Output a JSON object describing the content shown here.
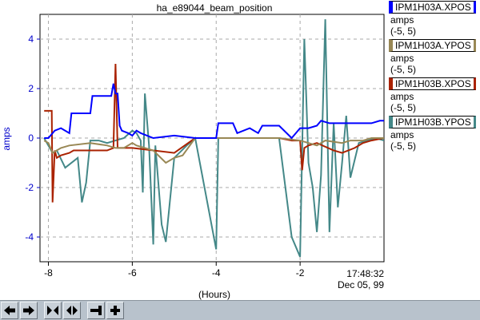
{
  "chart_data": {
    "type": "line",
    "title": "ha_e89044_beam_position",
    "ylabel": "amps",
    "xlabel": "(Hours)",
    "time_label": "17:48:32",
    "date_label": "Dec 05, 99",
    "xlim": [
      -8.2,
      0
    ],
    "ylim": [
      -5,
      5
    ],
    "xticks": [
      -8,
      -6,
      -4,
      -2
    ],
    "yticks": [
      -4,
      -2,
      0,
      2,
      4
    ],
    "grid": true,
    "legend_position": "right",
    "series": [
      {
        "name": "IPM1H03A.XPOS",
        "color": "#0000ff",
        "units": "amps",
        "range": "(-5, 5)",
        "x": [
          -8.1,
          -8.0,
          -7.85,
          -7.7,
          -7.5,
          -7.45,
          -7.2,
          -7.0,
          -6.95,
          -6.7,
          -6.6,
          -6.5,
          -6.45,
          -6.4,
          -6.35,
          -6.3,
          -6.25,
          -6.1,
          -6.0,
          -5.9,
          -5.8,
          -5.5,
          -5.0,
          -4.5,
          -4.0,
          -3.95,
          -3.9,
          -3.6,
          -3.5,
          -3.2,
          -3.0,
          -2.9,
          -2.5,
          -2.2,
          -2.0,
          -1.8,
          -1.6,
          -1.5,
          -1.3,
          -1.0,
          -0.8,
          -0.5,
          -0.3,
          -0.1,
          0.0
        ],
        "y": [
          0.0,
          0.0,
          0.3,
          0.4,
          0.2,
          1.0,
          1.0,
          1.0,
          1.7,
          1.7,
          1.7,
          1.7,
          2.2,
          1.8,
          1.8,
          0.5,
          0.3,
          0.2,
          0.1,
          0.3,
          0.2,
          0.0,
          0.1,
          0.0,
          0.0,
          0.6,
          0.6,
          0.6,
          0.2,
          0.4,
          0.2,
          0.5,
          0.5,
          0.0,
          0.4,
          0.4,
          0.5,
          0.7,
          0.6,
          0.6,
          0.6,
          0.6,
          0.6,
          0.7,
          0.7
        ]
      },
      {
        "name": "IPM1H03A.YPOS",
        "color": "#998855",
        "units": "amps",
        "range": "(-5, 5)",
        "x": [
          -8.1,
          -8.0,
          -7.9,
          -7.7,
          -7.5,
          -7.0,
          -6.6,
          -6.4,
          -6.2,
          -6.0,
          -5.9,
          -5.5,
          -5.2,
          -5.0,
          -4.8,
          -4.5,
          -4.0,
          -3.5,
          -3.0,
          -2.5,
          -2.0,
          -1.8,
          -1.6,
          -1.4,
          -1.0,
          -0.8,
          -0.5,
          -0.3,
          0.0
        ],
        "y": [
          -0.1,
          -0.2,
          -0.6,
          -0.4,
          -0.3,
          -0.2,
          -0.3,
          -0.4,
          -0.4,
          -0.2,
          -0.3,
          -0.5,
          -1.0,
          -0.8,
          -0.7,
          0.0,
          0.0,
          0.0,
          0.0,
          0.0,
          -0.1,
          -0.2,
          -0.3,
          -0.1,
          -0.2,
          -0.1,
          -0.1,
          0.0,
          0.0
        ]
      },
      {
        "name": "IPM1H03B.XPOS",
        "color": "#aa2200",
        "units": "amps",
        "range": "(-5, 5)",
        "x": [
          -8.1,
          -8.0,
          -7.92,
          -7.9,
          -7.85,
          -7.8,
          -7.7,
          -7.5,
          -7.4,
          -7.2,
          -7.0,
          -6.8,
          -6.6,
          -6.45,
          -6.4,
          -6.35,
          -6.3,
          -6.0,
          -5.5,
          -5.0,
          -4.5,
          -4.0,
          -3.5,
          -3.0,
          -2.5,
          -2.2,
          -2.0,
          -1.95,
          -1.9,
          -1.8,
          -1.6,
          -1.2,
          -1.0,
          -0.7,
          -0.5,
          -0.3,
          0.0
        ],
        "y": [
          1.1,
          1.1,
          1.1,
          -2.6,
          -0.5,
          -0.8,
          -0.7,
          -0.6,
          -0.5,
          -0.5,
          -0.5,
          -0.5,
          -0.5,
          -0.4,
          3.0,
          -0.4,
          -0.4,
          -0.4,
          -0.5,
          -0.6,
          0.0,
          0.0,
          0.0,
          0.0,
          0.0,
          -0.1,
          -0.1,
          -1.3,
          -0.4,
          -0.3,
          -0.2,
          -0.5,
          -0.6,
          -0.4,
          -0.2,
          -0.1,
          0.0
        ]
      },
      {
        "name": "IPM1H03B.YPOS",
        "color": "#448888",
        "units": "amps",
        "range": "(-5, 5)",
        "x": [
          -8.1,
          -7.9,
          -7.8,
          -7.6,
          -7.3,
          -7.2,
          -7.1,
          -7.0,
          -6.8,
          -6.6,
          -6.4,
          -6.2,
          -6.0,
          -5.9,
          -5.8,
          -5.75,
          -5.7,
          -5.6,
          -5.5,
          -5.45,
          -5.3,
          -5.2,
          -5.0,
          -4.7,
          -4.5,
          -4.0,
          -3.95,
          -3.9,
          -3.5,
          -3.0,
          -2.5,
          -2.2,
          -2.0,
          -1.9,
          -1.8,
          -1.7,
          -1.6,
          -1.5,
          -1.4,
          -1.3,
          -1.2,
          -1.1,
          -1.0,
          -0.9,
          -0.8,
          -0.6,
          -0.4,
          -0.2,
          0.0
        ],
        "y": [
          0.0,
          -0.6,
          -0.5,
          -1.2,
          -0.8,
          -2.6,
          -1.8,
          -0.1,
          -0.1,
          -0.2,
          -0.1,
          0.0,
          0.3,
          0.2,
          -0.1,
          -2.2,
          1.8,
          -0.3,
          -4.3,
          -0.3,
          -3.5,
          -4.2,
          -0.8,
          -0.3,
          0.0,
          -4.5,
          0.0,
          0.0,
          0.0,
          0.0,
          0.0,
          -4.0,
          -4.8,
          4.0,
          -1.0,
          -2.0,
          -3.8,
          -1.5,
          4.8,
          -3.8,
          0.6,
          -2.8,
          -1.0,
          0.9,
          -1.6,
          -0.2,
          -0.1,
          0.0,
          -0.1
        ]
      }
    ]
  },
  "toolbar": {
    "buttons": [
      {
        "icon": "arrow-left-icon"
      },
      {
        "icon": "arrow-right-icon"
      },
      {
        "icon": "zoom-in-icon"
      },
      {
        "icon": "zoom-out-icon"
      },
      {
        "icon": "line-icon"
      },
      {
        "icon": "plus-icon"
      }
    ]
  }
}
